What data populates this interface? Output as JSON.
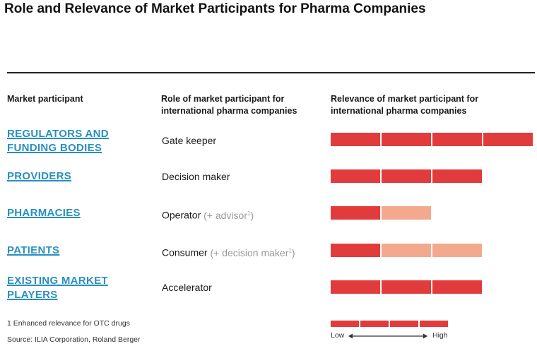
{
  "title": "Role and Relevance of Market Participants for Pharma Companies",
  "headers": {
    "participant": "Market participant",
    "role_line1": "Role of market participant for",
    "role_line2": "international pharma companies",
    "relevance_line1": "Relevance of market participant for",
    "relevance_line2": "international pharma companies"
  },
  "rows": [
    {
      "participant_line1": "REGULATORS AND",
      "participant_line2": "FUNDING BODIES",
      "role": "Gate keeper",
      "role_extra": "",
      "full_units": 4,
      "light_units": 0
    },
    {
      "participant_line1": "PROVIDERS",
      "participant_line2": "",
      "role": "Decision maker",
      "role_extra": "",
      "full_units": 3,
      "light_units": 0
    },
    {
      "participant_line1": "PHARMACIES",
      "participant_line2": "",
      "role": "Operator",
      "role_extra": "(+ advisor",
      "role_footnote": "1",
      "role_close": ")",
      "full_units": 1,
      "light_units": 1
    },
    {
      "participant_line1": "PATIENTS",
      "participant_line2": "",
      "role": "Consumer",
      "role_extra": "(+ decision maker",
      "role_footnote": "1",
      "role_close": ")",
      "full_units": 1,
      "light_units": 2
    },
    {
      "participant_line1": "EXISTING MARKET",
      "participant_line2": "PLAYERS",
      "role": "Accelerator",
      "role_extra": "",
      "full_units": 3,
      "light_units": 0
    }
  ],
  "footnote": "1 Enhanced relevance for OTC drugs",
  "source": "Source: ILIA Corporation, Roland Berger",
  "legend": {
    "low": "Low",
    "high": "High"
  },
  "colors": {
    "full": "#e23b3c",
    "light": "#f2a98e",
    "participant": "#2a8fc1"
  }
}
